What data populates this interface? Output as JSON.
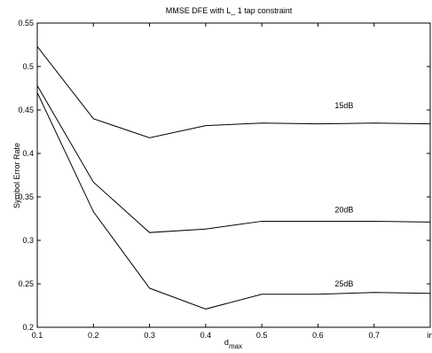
{
  "chart_data": {
    "type": "line",
    "title": "MMSE DFE with L_ 1 tap constraint",
    "xlabel": "d",
    "xlabel_sub": "max",
    "ylabel": "Symbol Error Rate",
    "x": [
      0.1,
      0.2,
      0.3,
      0.4,
      0.5,
      0.6,
      0.7,
      0.8
    ],
    "x_tick_labels": [
      "0.1",
      "0.2",
      "0.3",
      "0.4",
      "0.5",
      "0.6",
      "0.7",
      "in"
    ],
    "xlim": [
      0.1,
      0.8
    ],
    "ylim": [
      0.2,
      0.55
    ],
    "y_ticks": [
      0.2,
      0.25,
      0.3,
      0.35,
      0.4,
      0.45,
      0.5,
      0.55
    ],
    "y_tick_labels": [
      "0.2",
      "0.25",
      "0.3",
      "0.35",
      "0.4",
      "0.45",
      "0.5",
      "0.55"
    ],
    "grid": false,
    "series": [
      {
        "name": "15dB",
        "values": [
          0.523,
          0.44,
          0.418,
          0.432,
          0.435,
          0.434,
          0.435,
          0.434
        ],
        "label_at": [
          0.63,
          0.452
        ]
      },
      {
        "name": "20dB",
        "values": [
          0.478,
          0.367,
          0.309,
          0.313,
          0.322,
          0.322,
          0.322,
          0.321
        ],
        "label_at": [
          0.63,
          0.332
        ]
      },
      {
        "name": "25dB",
        "values": [
          0.47,
          0.333,
          0.245,
          0.221,
          0.238,
          0.238,
          0.24,
          0.239
        ],
        "label_at": [
          0.63,
          0.247
        ]
      }
    ]
  }
}
